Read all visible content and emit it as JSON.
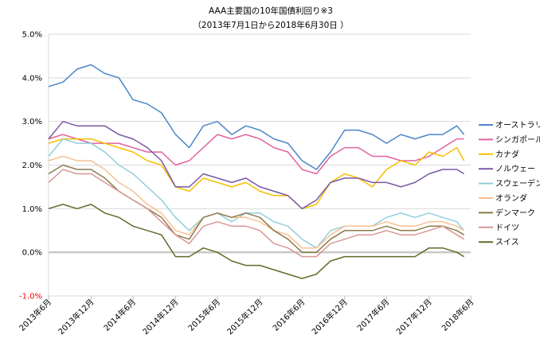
{
  "chart_data": {
    "type": "line",
    "title": "AAA主要国の10年国債利回り※3",
    "subtitle": "（2013年7月1日から2018年6月30日 ）",
    "xlabel": "",
    "ylabel": "",
    "x_start": "2013-07-01",
    "x_end": "2018-06-30",
    "ylim": [
      -1.0,
      5.0
    ],
    "y_ticks": [
      "5.0%",
      "4.0%",
      "3.0%",
      "2.0%",
      "1.0%",
      "0.0%",
      "-1.0%"
    ],
    "x_ticks": [
      {
        "label": "2013年6月",
        "date": "2013-07-01"
      },
      {
        "label": "2013年12月",
        "date": "2014-01-01"
      },
      {
        "label": "2014年6月",
        "date": "2014-07-01"
      },
      {
        "label": "2014年12月",
        "date": "2015-01-01"
      },
      {
        "label": "2015年6月",
        "date": "2015-07-01"
      },
      {
        "label": "2015年12月",
        "date": "2016-01-01"
      },
      {
        "label": "2016年6月",
        "date": "2016-07-01"
      },
      {
        "label": "2016年12月",
        "date": "2017-01-01"
      },
      {
        "label": "2017年6月",
        "date": "2017-07-01"
      },
      {
        "label": "2017年12月",
        "date": "2018-01-01"
      },
      {
        "label": "2018年6月",
        "date": "2018-07-01"
      }
    ],
    "grid": "horizontal",
    "legend_position": "right",
    "series": [
      {
        "name": "オーストラリア",
        "color": "#4a86c8",
        "x": [
          "2013-07",
          "2013-09",
          "2013-11",
          "2014-01",
          "2014-03",
          "2014-05",
          "2014-07",
          "2014-09",
          "2014-11",
          "2015-01",
          "2015-03",
          "2015-05",
          "2015-07",
          "2015-09",
          "2015-11",
          "2016-01",
          "2016-03",
          "2016-05",
          "2016-07",
          "2016-09",
          "2016-11",
          "2017-01",
          "2017-03",
          "2017-05",
          "2017-07",
          "2017-09",
          "2017-11",
          "2018-01",
          "2018-03",
          "2018-05",
          "2018-06"
        ],
        "values": [
          3.8,
          3.9,
          4.2,
          4.3,
          4.1,
          4.0,
          3.5,
          3.4,
          3.2,
          2.7,
          2.4,
          2.9,
          3.0,
          2.7,
          2.9,
          2.8,
          2.6,
          2.5,
          2.1,
          1.9,
          2.3,
          2.8,
          2.8,
          2.7,
          2.5,
          2.7,
          2.6,
          2.7,
          2.7,
          2.9,
          2.7
        ]
      },
      {
        "name": "シンガポール",
        "color": "#e0649e",
        "x": [
          "2013-07",
          "2013-09",
          "2013-11",
          "2014-01",
          "2014-03",
          "2014-05",
          "2014-07",
          "2014-09",
          "2014-11",
          "2015-01",
          "2015-03",
          "2015-05",
          "2015-07",
          "2015-09",
          "2015-11",
          "2016-01",
          "2016-03",
          "2016-05",
          "2016-07",
          "2016-09",
          "2016-11",
          "2017-01",
          "2017-03",
          "2017-05",
          "2017-07",
          "2017-09",
          "2017-11",
          "2018-01",
          "2018-03",
          "2018-05",
          "2018-06"
        ],
        "values": [
          2.6,
          2.7,
          2.6,
          2.5,
          2.5,
          2.5,
          2.4,
          2.3,
          2.3,
          2.0,
          2.1,
          2.4,
          2.7,
          2.6,
          2.7,
          2.6,
          2.4,
          2.3,
          1.9,
          1.8,
          2.2,
          2.4,
          2.4,
          2.2,
          2.2,
          2.1,
          2.1,
          2.2,
          2.4,
          2.6,
          2.6
        ]
      },
      {
        "name": "カナダ",
        "color": "#f5c000",
        "x": [
          "2013-07",
          "2013-09",
          "2013-11",
          "2014-01",
          "2014-03",
          "2014-05",
          "2014-07",
          "2014-09",
          "2014-11",
          "2015-01",
          "2015-03",
          "2015-05",
          "2015-07",
          "2015-09",
          "2015-11",
          "2016-01",
          "2016-03",
          "2016-05",
          "2016-07",
          "2016-09",
          "2016-11",
          "2017-01",
          "2017-03",
          "2017-05",
          "2017-07",
          "2017-09",
          "2017-11",
          "2018-01",
          "2018-03",
          "2018-05",
          "2018-06"
        ],
        "values": [
          2.5,
          2.6,
          2.6,
          2.6,
          2.5,
          2.4,
          2.3,
          2.1,
          2.0,
          1.5,
          1.4,
          1.7,
          1.6,
          1.5,
          1.6,
          1.4,
          1.3,
          1.3,
          1.0,
          1.1,
          1.6,
          1.8,
          1.7,
          1.5,
          1.9,
          2.1,
          2.0,
          2.3,
          2.2,
          2.4,
          2.1
        ]
      },
      {
        "name": "ノルウェー",
        "color": "#7b58a4",
        "x": [
          "2013-07",
          "2013-09",
          "2013-11",
          "2014-01",
          "2014-03",
          "2014-05",
          "2014-07",
          "2014-09",
          "2014-11",
          "2015-01",
          "2015-03",
          "2015-05",
          "2015-07",
          "2015-09",
          "2015-11",
          "2016-01",
          "2016-03",
          "2016-05",
          "2016-07",
          "2016-09",
          "2016-11",
          "2017-01",
          "2017-03",
          "2017-05",
          "2017-07",
          "2017-09",
          "2017-11",
          "2018-01",
          "2018-03",
          "2018-05",
          "2018-06"
        ],
        "values": [
          2.6,
          3.0,
          2.9,
          2.9,
          2.9,
          2.7,
          2.6,
          2.4,
          2.1,
          1.5,
          1.5,
          1.8,
          1.7,
          1.6,
          1.7,
          1.5,
          1.4,
          1.3,
          1.0,
          1.2,
          1.6,
          1.7,
          1.7,
          1.6,
          1.6,
          1.5,
          1.6,
          1.8,
          1.9,
          1.9,
          1.8
        ]
      },
      {
        "name": "スウェーデン",
        "color": "#92cddc",
        "x": [
          "2013-07",
          "2013-09",
          "2013-11",
          "2014-01",
          "2014-03",
          "2014-05",
          "2014-07",
          "2014-09",
          "2014-11",
          "2015-01",
          "2015-03",
          "2015-05",
          "2015-07",
          "2015-09",
          "2015-11",
          "2016-01",
          "2016-03",
          "2016-05",
          "2016-07",
          "2016-09",
          "2016-11",
          "2017-01",
          "2017-03",
          "2017-05",
          "2017-07",
          "2017-09",
          "2017-11",
          "2018-01",
          "2018-03",
          "2018-05",
          "2018-06"
        ],
        "values": [
          2.2,
          2.6,
          2.5,
          2.5,
          2.3,
          2.0,
          1.8,
          1.5,
          1.2,
          0.8,
          0.5,
          0.8,
          0.9,
          0.7,
          0.9,
          0.9,
          0.7,
          0.6,
          0.3,
          0.1,
          0.5,
          0.6,
          0.6,
          0.6,
          0.8,
          0.9,
          0.8,
          0.9,
          0.8,
          0.7,
          0.5
        ]
      },
      {
        "name": "オランダ",
        "color": "#fabf8f",
        "x": [
          "2013-07",
          "2013-09",
          "2013-11",
          "2014-01",
          "2014-03",
          "2014-05",
          "2014-07",
          "2014-09",
          "2014-11",
          "2015-01",
          "2015-03",
          "2015-05",
          "2015-07",
          "2015-09",
          "2015-11",
          "2016-01",
          "2016-03",
          "2016-05",
          "2016-07",
          "2016-09",
          "2016-11",
          "2017-01",
          "2017-03",
          "2017-05",
          "2017-07",
          "2017-09",
          "2017-11",
          "2018-01",
          "2018-03",
          "2018-05",
          "2018-06"
        ],
        "values": [
          2.1,
          2.2,
          2.1,
          2.1,
          1.9,
          1.6,
          1.4,
          1.1,
          0.9,
          0.5,
          0.4,
          0.8,
          0.9,
          0.8,
          0.8,
          0.7,
          0.5,
          0.4,
          0.1,
          0.1,
          0.4,
          0.6,
          0.6,
          0.6,
          0.7,
          0.6,
          0.6,
          0.7,
          0.7,
          0.6,
          0.5
        ]
      },
      {
        "name": "デンマーク",
        "color": "#8c7a4a",
        "x": [
          "2013-07",
          "2013-09",
          "2013-11",
          "2014-01",
          "2014-03",
          "2014-05",
          "2014-07",
          "2014-09",
          "2014-11",
          "2015-01",
          "2015-03",
          "2015-05",
          "2015-07",
          "2015-09",
          "2015-11",
          "2016-01",
          "2016-03",
          "2016-05",
          "2016-07",
          "2016-09",
          "2016-11",
          "2017-01",
          "2017-03",
          "2017-05",
          "2017-07",
          "2017-09",
          "2017-11",
          "2018-01",
          "2018-03",
          "2018-05",
          "2018-06"
        ],
        "values": [
          1.8,
          2.0,
          1.9,
          1.9,
          1.7,
          1.4,
          1.2,
          1.0,
          0.8,
          0.4,
          0.3,
          0.8,
          0.9,
          0.8,
          0.9,
          0.8,
          0.5,
          0.3,
          0.0,
          0.0,
          0.3,
          0.5,
          0.5,
          0.5,
          0.6,
          0.5,
          0.5,
          0.6,
          0.6,
          0.5,
          0.4
        ]
      },
      {
        "name": "ドイツ",
        "color": "#d99694",
        "x": [
          "2013-07",
          "2013-09",
          "2013-11",
          "2014-01",
          "2014-03",
          "2014-05",
          "2014-07",
          "2014-09",
          "2014-11",
          "2015-01",
          "2015-03",
          "2015-05",
          "2015-07",
          "2015-09",
          "2015-11",
          "2016-01",
          "2016-03",
          "2016-05",
          "2016-07",
          "2016-09",
          "2016-11",
          "2017-01",
          "2017-03",
          "2017-05",
          "2017-07",
          "2017-09",
          "2017-11",
          "2018-01",
          "2018-03",
          "2018-05",
          "2018-06"
        ],
        "values": [
          1.6,
          1.9,
          1.8,
          1.8,
          1.6,
          1.4,
          1.2,
          1.0,
          0.7,
          0.4,
          0.2,
          0.6,
          0.7,
          0.6,
          0.6,
          0.5,
          0.2,
          0.1,
          -0.1,
          -0.1,
          0.2,
          0.3,
          0.4,
          0.4,
          0.5,
          0.4,
          0.4,
          0.5,
          0.6,
          0.4,
          0.3
        ]
      },
      {
        "name": "スイス",
        "color": "#5b6e2a",
        "x": [
          "2013-07",
          "2013-09",
          "2013-11",
          "2014-01",
          "2014-03",
          "2014-05",
          "2014-07",
          "2014-09",
          "2014-11",
          "2015-01",
          "2015-03",
          "2015-05",
          "2015-07",
          "2015-09",
          "2015-11",
          "2016-01",
          "2016-03",
          "2016-05",
          "2016-07",
          "2016-09",
          "2016-11",
          "2017-01",
          "2017-03",
          "2017-05",
          "2017-07",
          "2017-09",
          "2017-11",
          "2018-01",
          "2018-03",
          "2018-05",
          "2018-06"
        ],
        "values": [
          1.0,
          1.1,
          1.0,
          1.1,
          0.9,
          0.8,
          0.6,
          0.5,
          0.4,
          -0.1,
          -0.1,
          0.1,
          0.0,
          -0.2,
          -0.3,
          -0.3,
          -0.4,
          -0.5,
          -0.6,
          -0.5,
          -0.2,
          -0.1,
          -0.1,
          -0.1,
          -0.1,
          -0.1,
          -0.1,
          0.1,
          0.1,
          0.0,
          -0.1
        ]
      }
    ]
  }
}
